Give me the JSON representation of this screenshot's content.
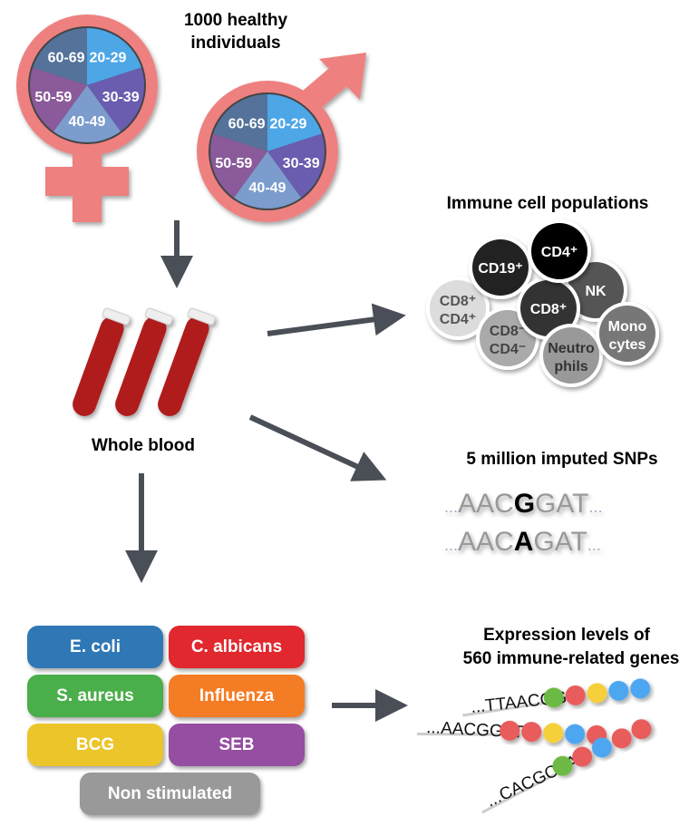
{
  "population": {
    "title_line1": "1000 healthy",
    "title_line2": "individuals",
    "age_groups": [
      "20-29",
      "30-39",
      "40-49",
      "50-59",
      "60-69"
    ],
    "age_colors": [
      "#4da6e6",
      "#6a5caf",
      "#7b9ccc",
      "#8a5a9a",
      "#54729a"
    ],
    "symbol_color": "#ee8080"
  },
  "blood": {
    "label": "Whole blood",
    "tube_color": "#b01c1c"
  },
  "cells": {
    "title": "Immune cell populations",
    "items": [
      {
        "label": "CD8⁺",
        "label2": "CD4⁺",
        "color": "#dcdcdc",
        "text": "#555"
      },
      {
        "label": "CD19⁺",
        "color": "#222",
        "text": "#fff"
      },
      {
        "label": "CD8⁻",
        "label2": "CD4⁻",
        "color": "#aaaaaa",
        "text": "#444"
      },
      {
        "label": "NK",
        "color": "#555",
        "text": "#fff"
      },
      {
        "label": "CD8⁺",
        "color": "#333",
        "text": "#fff"
      },
      {
        "label": "CD4⁺",
        "color": "#000",
        "text": "#fff"
      },
      {
        "label": "Neutro",
        "label2": "phils",
        "color": "#999",
        "text": "#333"
      },
      {
        "label": "Mono",
        "label2": "cytes",
        "color": "#777",
        "text": "#fff"
      }
    ]
  },
  "snps": {
    "title": "5 million imputed SNPs",
    "seq1": {
      "pre": "AAC",
      "snp": "G",
      "post": "GAT"
    },
    "seq2": {
      "pre": "AAC",
      "snp": "A",
      "post": "GAT"
    },
    "dots": "..."
  },
  "stimuli": [
    {
      "label": "E. coli",
      "color": "#2f78b5"
    },
    {
      "label": "C. albicans",
      "color": "#e0282e"
    },
    {
      "label": "S. aureus",
      "color": "#4aae4a"
    },
    {
      "label": "Influenza",
      "color": "#f47c24"
    },
    {
      "label": "BCG",
      "color": "#ecc52a"
    },
    {
      "label": "SEB",
      "color": "#964ea2"
    },
    {
      "label": "Non stimulated",
      "color": "#999999"
    }
  ],
  "expression": {
    "title_line1": "Expression levels of",
    "title_line2": "560 immune-related genes",
    "strands": [
      {
        "seq": "...TTAACGG",
        "beads": [
          "#6cba45",
          "#e85c5c",
          "#f5d03b",
          "#4da6f0",
          "#4da6f0"
        ]
      },
      {
        "seq": "...AACGGAT",
        "beads": [
          "#e85c5c",
          "#e85c5c",
          "#f5d03b",
          "#4da6f0",
          "#e85c5c"
        ]
      },
      {
        "seq": "...CACGCAA",
        "beads": [
          "#6cba45",
          "#e85c5c",
          "#4da6f0",
          "#e85c5c",
          "#e85c5c"
        ]
      }
    ]
  },
  "arrow_color": "#4a4f57"
}
